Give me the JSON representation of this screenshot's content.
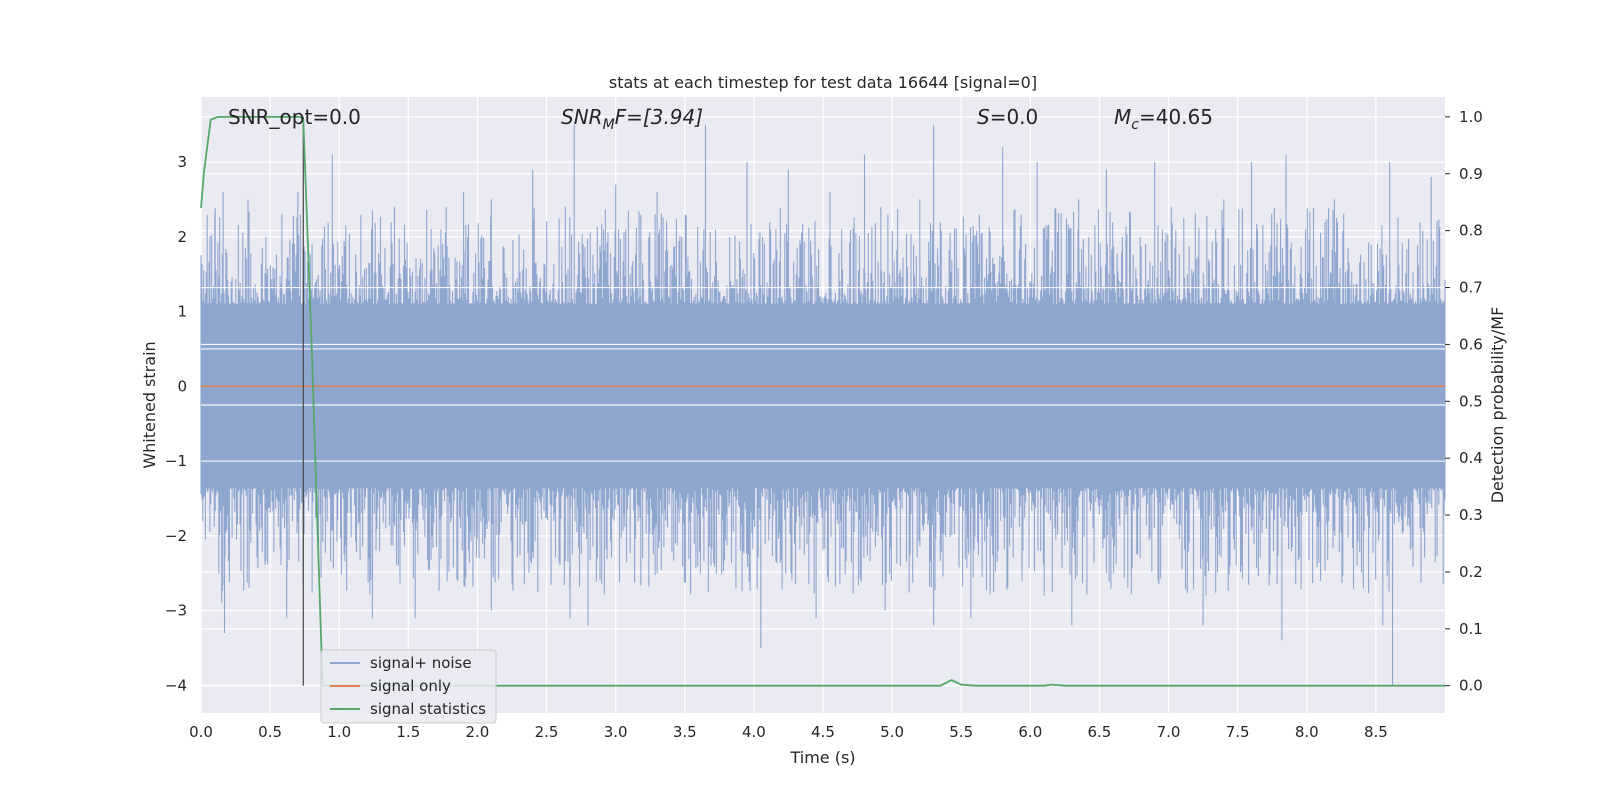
{
  "chart_data": {
    "type": "line",
    "title": "stats at each timestep for test data 16644 [signal=0]",
    "xlabel": "Time (s)",
    "ylabel": "Whitened strain",
    "ylabel_right": "Detection probability/MF",
    "xlim": [
      0,
      9.0
    ],
    "ylim": [
      -4.37,
      3.87
    ],
    "ylim_right": [
      -0.048,
      1.035
    ],
    "x_ticks": [
      0.0,
      0.5,
      1.0,
      1.5,
      2.0,
      2.5,
      3.0,
      3.5,
      4.0,
      4.5,
      5.0,
      5.5,
      6.0,
      6.5,
      7.0,
      7.5,
      8.0,
      8.5
    ],
    "x_tick_labels": [
      "0.0",
      "0.5",
      "1.0",
      "1.5",
      "2.0",
      "2.5",
      "3.0",
      "3.5",
      "4.0",
      "4.5",
      "5.0",
      "5.5",
      "6.0",
      "6.5",
      "7.0",
      "7.5",
      "8.0",
      "8.5"
    ],
    "y_ticks": [
      3,
      2,
      1,
      0,
      -1,
      -2,
      -3,
      -4
    ],
    "y_tick_labels": [
      "3",
      "2",
      "1",
      "0",
      "−1",
      "−2",
      "−3",
      "−4"
    ],
    "y_ticks_right": [
      1.0,
      0.9,
      0.8,
      0.7,
      0.6,
      0.5,
      0.4,
      0.3,
      0.2,
      0.1,
      0.0
    ],
    "y_tick_labels_right": [
      "1.0",
      "0.9",
      "0.8",
      "0.7",
      "0.6",
      "0.5",
      "0.4",
      "0.3",
      "0.2",
      "0.1",
      "0.0"
    ],
    "grid": true,
    "legend_position": "lower-left",
    "legend": [
      {
        "label": "signal+ noise",
        "color": "#8fa6cf"
      },
      {
        "label": "signal only",
        "color": "#dd8452"
      },
      {
        "label": "signal statistics",
        "color": "#55a868"
      }
    ],
    "annotations": {
      "snr_opt": "SNR_opt=0.0",
      "snr_mf_base": "SNR",
      "snr_mf_sub": "M",
      "snr_mf_rest": "F=[3.94]",
      "s_label": "S",
      "s_value": "=0.0",
      "mc_base": "M",
      "mc_sub": "c",
      "mc_value": "=40.65"
    },
    "vertical_marker_x": 0.74,
    "series": [
      {
        "name": "signal+ noise",
        "axis": "left",
        "color": "#8fa6cf",
        "style": "dense noise band",
        "x_range": [
          0,
          9.0
        ],
        "typical_upper_envelope": 1.3,
        "typical_lower_envelope": -1.6,
        "peaks": [
          [
            0.1,
            2.3
          ],
          [
            0.16,
            2.6
          ],
          [
            0.34,
            2.5
          ],
          [
            0.7,
            2.6
          ],
          [
            0.95,
            3.1
          ],
          [
            1.4,
            2.4
          ],
          [
            1.9,
            2.6
          ],
          [
            2.1,
            2.5
          ],
          [
            2.4,
            2.9
          ],
          [
            2.7,
            3.5
          ],
          [
            3.0,
            2.7
          ],
          [
            3.3,
            2.6
          ],
          [
            3.65,
            3.5
          ],
          [
            3.95,
            3.0
          ],
          [
            4.25,
            2.9
          ],
          [
            4.55,
            2.6
          ],
          [
            4.8,
            3.1
          ],
          [
            5.2,
            2.5
          ],
          [
            5.3,
            3.5
          ],
          [
            5.8,
            3.2
          ],
          [
            6.05,
            3.0
          ],
          [
            6.35,
            2.5
          ],
          [
            6.55,
            2.9
          ],
          [
            6.9,
            3.0
          ],
          [
            7.4,
            2.5
          ],
          [
            7.6,
            3.0
          ],
          [
            7.85,
            3.1
          ],
          [
            8.2,
            2.5
          ],
          [
            8.6,
            3.0
          ],
          [
            8.9,
            2.8
          ]
        ],
        "troughs": [
          [
            0.15,
            -2.9
          ],
          [
            0.17,
            -3.3
          ],
          [
            0.62,
            -3.1
          ],
          [
            0.85,
            -2.4
          ],
          [
            1.24,
            -3.1
          ],
          [
            1.55,
            -3.1
          ],
          [
            2.1,
            -3.0
          ],
          [
            2.67,
            -3.1
          ],
          [
            2.8,
            -3.2
          ],
          [
            3.3,
            -2.5
          ],
          [
            3.87,
            -2.7
          ],
          [
            4.05,
            -3.5
          ],
          [
            4.45,
            -3.1
          ],
          [
            4.95,
            -3.0
          ],
          [
            5.3,
            -3.2
          ],
          [
            5.57,
            -3.1
          ],
          [
            6.1,
            -2.8
          ],
          [
            6.3,
            -3.2
          ],
          [
            6.55,
            -2.5
          ],
          [
            7.25,
            -3.2
          ],
          [
            7.82,
            -3.4
          ],
          [
            8.1,
            -2.6
          ],
          [
            8.55,
            -3.2
          ],
          [
            8.62,
            -4.0
          ]
        ]
      },
      {
        "name": "signal only",
        "axis": "left",
        "color": "#dd8452",
        "x": [
          0,
          9.0
        ],
        "y": [
          0,
          0
        ]
      },
      {
        "name": "signal statistics",
        "axis": "right",
        "color": "#55a868",
        "x": [
          0.0,
          0.02,
          0.07,
          0.12,
          0.3,
          0.5,
          0.72,
          0.74,
          0.8,
          0.88,
          5.35,
          5.43,
          5.5,
          5.6,
          6.1,
          6.15,
          6.2,
          6.25,
          6.7,
          9.0
        ],
        "y": [
          0.84,
          0.9,
          0.995,
          1.0,
          1.0,
          1.0,
          1.0,
          0.995,
          0.6,
          0.0,
          0.0,
          0.01,
          0.002,
          0.0,
          0.0,
          0.002,
          0.001,
          0.0,
          0.0,
          0.0
        ]
      }
    ]
  }
}
